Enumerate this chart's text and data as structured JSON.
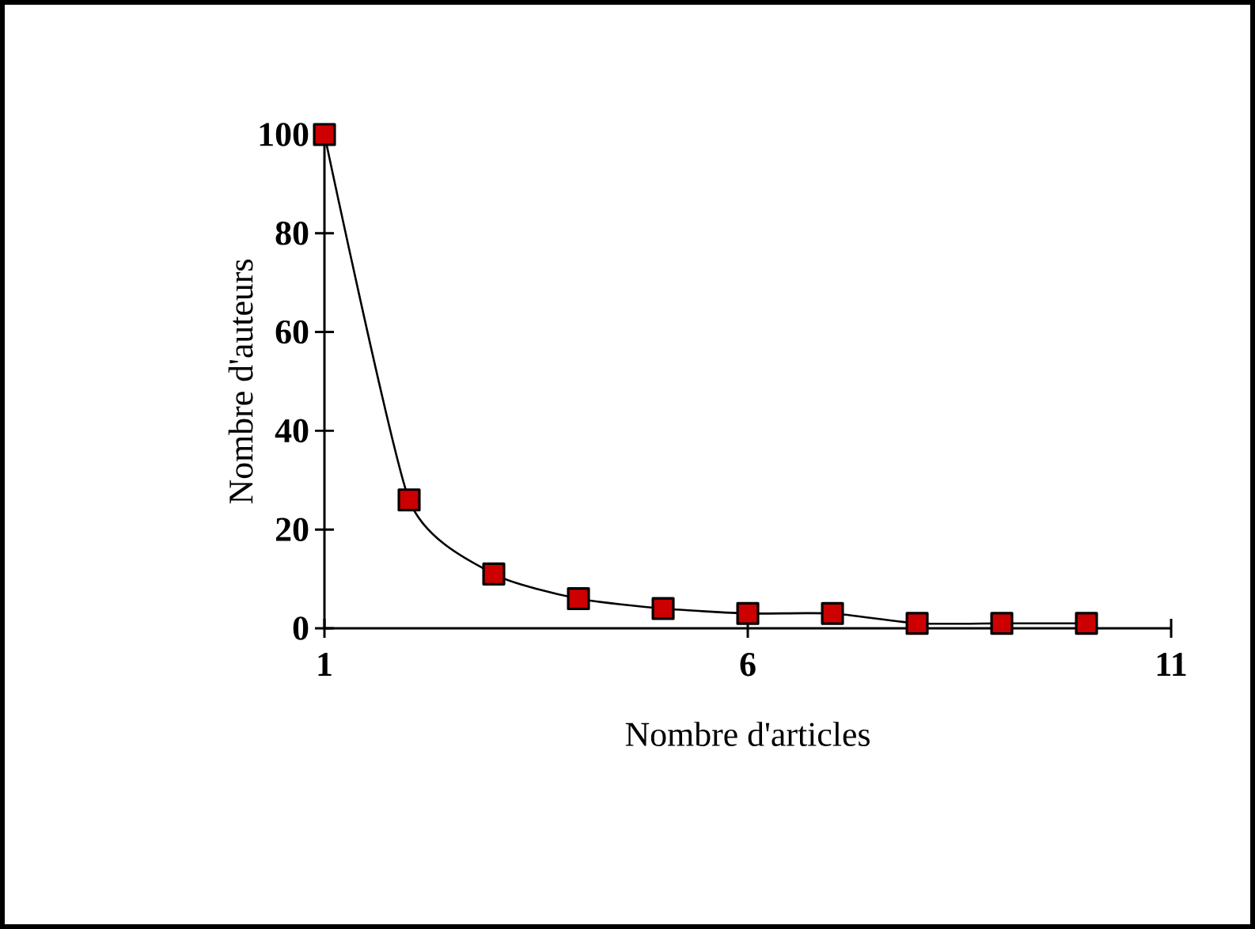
{
  "chart_data": {
    "type": "line",
    "xlabel": "Nombre d'articles",
    "ylabel": "Nombre d'auteurs",
    "x": [
      1,
      2,
      3,
      4,
      5,
      6,
      7,
      8,
      9,
      10
    ],
    "series": [
      {
        "color": "#cc0000",
        "values": [
          100,
          26,
          11,
          6,
          4,
          3,
          3,
          1,
          1,
          1
        ]
      }
    ],
    "xlim": [
      1,
      11
    ],
    "xticks": [
      1,
      6,
      11
    ],
    "ylim": [
      0,
      100
    ],
    "yticks": [
      0,
      20,
      40,
      60,
      80,
      100
    ],
    "marker": "square",
    "line_style": "solid"
  }
}
